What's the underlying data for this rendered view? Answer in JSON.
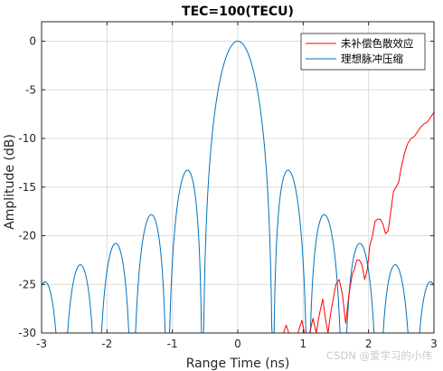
{
  "chart_data": {
    "type": "line",
    "title": "TEC=100(TECU)",
    "xlabel": "Range Time (ns)",
    "ylabel": "Amplitude (dB)",
    "xlim": [
      -3,
      3
    ],
    "ylim": [
      -30,
      2
    ],
    "xticks": [
      "-3",
      "-2",
      "-1",
      "0",
      "1",
      "2",
      "3"
    ],
    "yticks": [
      "0",
      "-5",
      "-10",
      "-15",
      "-20",
      "-25",
      "-30"
    ],
    "grid": true,
    "legend_position": "top-right",
    "series": [
      {
        "name": "未补偿色散效应",
        "color": "#ff0000",
        "x": [
          0.7,
          0.74,
          0.78,
          0.85,
          0.92,
          0.98,
          1.02,
          1.06,
          1.1,
          1.15,
          1.2,
          1.25,
          1.3,
          1.34,
          1.38,
          1.42,
          1.46,
          1.5,
          1.55,
          1.6,
          1.65,
          1.7,
          1.75,
          1.78,
          1.82,
          1.86,
          1.9,
          1.94,
          1.98,
          2.02,
          2.06,
          2.1,
          2.14,
          2.18,
          2.22,
          2.26,
          2.3,
          2.34,
          2.38,
          2.42,
          2.46,
          2.5,
          2.55,
          2.6,
          2.65,
          2.7,
          2.75,
          2.8,
          2.85,
          2.9,
          2.95,
          3.0
        ],
        "y": [
          -30.0,
          -29.2,
          -30.0,
          -30.0,
          -30.0,
          -28.7,
          -30.0,
          -30.0,
          -30.0,
          -28.5,
          -30.0,
          -28.0,
          -26.5,
          -28.5,
          -30.0,
          -28.0,
          -26.5,
          -25.0,
          -24.5,
          -26.0,
          -29.0,
          -26.0,
          -24.0,
          -23.5,
          -22.5,
          -22.5,
          -23.0,
          -24.5,
          -23.5,
          -21.0,
          -20.0,
          -18.5,
          -18.3,
          -18.3,
          -18.8,
          -19.8,
          -19.5,
          -17.5,
          -15.5,
          -15.0,
          -14.5,
          -13.0,
          -11.5,
          -10.5,
          -10.0,
          -9.8,
          -9.3,
          -8.8,
          -8.5,
          -8.3,
          -7.8,
          -7.3
        ]
      },
      {
        "name": "理想脉冲压缩",
        "color": "#0072bd",
        "x": [],
        "y": []
      }
    ]
  },
  "watermark": "CSDN @爱学习的小伟"
}
